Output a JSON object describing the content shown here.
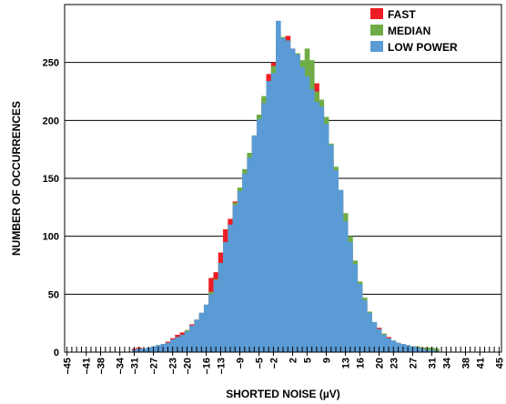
{
  "chart_data": {
    "type": "bar",
    "title": "",
    "xlabel": "SHORTED NOISE (µV)",
    "ylabel": "NUMBER OF OCCURRENCES",
    "ylim": [
      0,
      300
    ],
    "xlim": [
      -45.5,
      45.5
    ],
    "x_tick_labels": [
      "–45",
      "–41",
      "–38",
      "–34",
      "–31",
      "–27",
      "–23",
      "–20",
      "–16",
      "–13",
      "–9",
      "–5",
      "–2",
      "2",
      "5",
      "9",
      "13",
      "16",
      "20",
      "23",
      "27",
      "31",
      "34",
      "38",
      "41",
      "45"
    ],
    "y_tick_labels": [
      "0",
      "50",
      "100",
      "150",
      "200",
      "250"
    ],
    "grid": true,
    "legend_position": "top-right",
    "x": [
      -31,
      -30,
      -29,
      -28,
      -27,
      -26,
      -25,
      -24,
      -23,
      -22,
      -21,
      -20,
      -19,
      -18,
      -17,
      -16,
      -15,
      -14,
      -13,
      -12,
      -11,
      -10,
      -9,
      -8,
      -7,
      -6,
      -5,
      -4,
      -3,
      -2,
      -1,
      0,
      1,
      2,
      3,
      4,
      5,
      6,
      7,
      8,
      9,
      10,
      11,
      12,
      13,
      14,
      15,
      16,
      17,
      18,
      19,
      20,
      21,
      22,
      23,
      24,
      25,
      26,
      27,
      28,
      29,
      30,
      31,
      32
    ],
    "series": [
      {
        "name": "FAST",
        "color": "#ee1c24",
        "values": [
          3,
          4,
          3,
          3,
          4,
          6,
          7,
          9,
          12,
          15,
          17,
          19,
          24,
          28,
          33,
          40,
          64,
          69,
          86,
          106,
          115,
          130,
          139,
          153,
          168,
          183,
          199,
          218,
          240,
          250,
          264,
          268,
          273,
          262,
          255,
          244,
          239,
          230,
          232,
          191,
          179,
          165,
          140,
          133,
          108,
          87,
          72,
          58,
          44,
          33,
          25,
          21,
          16,
          13,
          9,
          8,
          7,
          6,
          5,
          5,
          4,
          4,
          3,
          2
        ]
      },
      {
        "name": "MEDIAN",
        "color": "#6fac46",
        "values": [
          2,
          3,
          3,
          4,
          5,
          6,
          7,
          8,
          11,
          13,
          15,
          19,
          23,
          28,
          34,
          41,
          52,
          63,
          77,
          95,
          110,
          129,
          142,
          158,
          172,
          187,
          205,
          221,
          234,
          247,
          275,
          272,
          269,
          260,
          258,
          252,
          262,
          252,
          225,
          218,
          203,
          180,
          160,
          140,
          120,
          100,
          79,
          61,
          47,
          35,
          26,
          20,
          16,
          12,
          10,
          8,
          7,
          6,
          5,
          5,
          4,
          4,
          4,
          3
        ]
      },
      {
        "name": "LOW POWER",
        "color": "#5b9bd5",
        "values": [
          2,
          3,
          3,
          4,
          5,
          6,
          7,
          8,
          11,
          13,
          15,
          18,
          23,
          28,
          34,
          41,
          50,
          62,
          77,
          95,
          110,
          127,
          139,
          154,
          168,
          187,
          201,
          215,
          234,
          241,
          286,
          271,
          269,
          262,
          257,
          246,
          238,
          227,
          216,
          212,
          197,
          179,
          157,
          140,
          113,
          95,
          76,
          59,
          45,
          34,
          26,
          20,
          15,
          12,
          10,
          8,
          7,
          6,
          5,
          4,
          3,
          2,
          2,
          1
        ]
      }
    ]
  }
}
